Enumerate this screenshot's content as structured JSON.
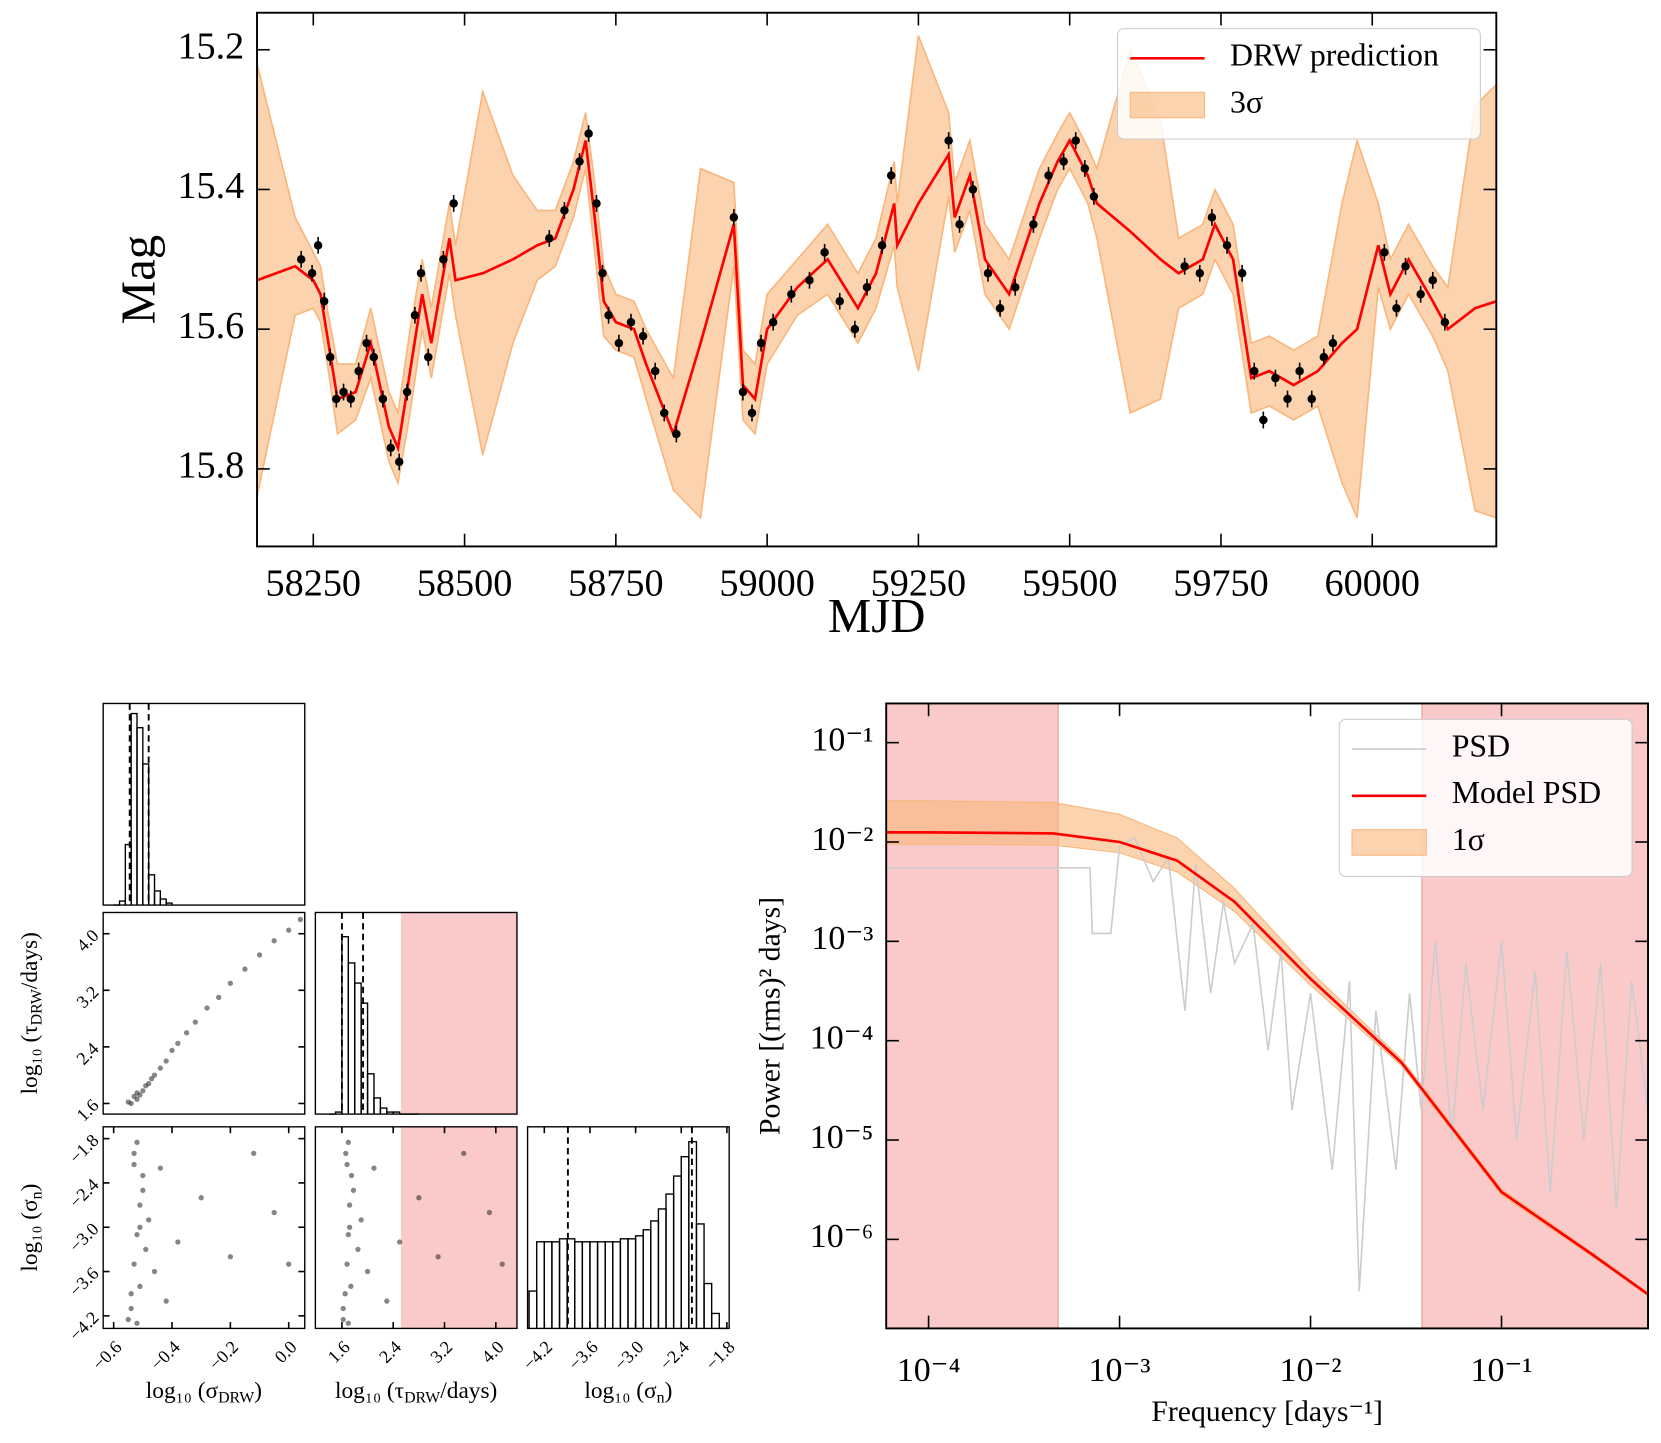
{
  "chart_data": [
    {
      "type": "line",
      "xlabel": "MJD",
      "ylabel": "Mag",
      "legend": "upper right",
      "xlim": [
        58157,
        60205
      ],
      "ylim": [
        15.147,
        15.911
      ],
      "y_inverted": true,
      "xticks": [
        58250,
        58500,
        58750,
        59000,
        59250,
        59500,
        59750,
        60000
      ],
      "yticks": [
        15.2,
        15.4,
        15.6,
        15.8
      ],
      "series": [
        {
          "name": "DRW prediction",
          "color": "#ff0000",
          "x": [
            58157,
            58220,
            58250,
            58262,
            58275,
            58290,
            58320,
            58345,
            58360,
            58375,
            58390,
            58410,
            58430,
            58445,
            58475,
            58485,
            58530,
            58580,
            58620,
            58650,
            58680,
            58700,
            58715,
            58730,
            58750,
            58780,
            58800,
            58845,
            58890,
            58945,
            58960,
            58980,
            59000,
            59050,
            59100,
            59150,
            59180,
            59210,
            59215,
            59250,
            59300,
            59310,
            59335,
            59360,
            59400,
            59450,
            59480,
            59500,
            59530,
            59545,
            59600,
            59650,
            59680,
            59720,
            59740,
            59770,
            59800,
            59830,
            59870,
            59910,
            59950,
            59975,
            60010,
            60030,
            60060,
            60100,
            60125,
            60170,
            60205
          ],
          "values": [
            15.53,
            15.51,
            15.53,
            15.55,
            15.62,
            15.7,
            15.69,
            15.62,
            15.68,
            15.74,
            15.77,
            15.66,
            15.55,
            15.62,
            15.47,
            15.53,
            15.52,
            15.5,
            15.48,
            15.47,
            15.4,
            15.33,
            15.44,
            15.56,
            15.59,
            15.6,
            15.65,
            15.75,
            15.62,
            15.45,
            15.68,
            15.7,
            15.6,
            15.54,
            15.5,
            15.57,
            15.52,
            15.42,
            15.48,
            15.42,
            15.35,
            15.44,
            15.38,
            15.5,
            15.55,
            15.42,
            15.36,
            15.33,
            15.38,
            15.42,
            15.46,
            15.5,
            15.52,
            15.5,
            15.45,
            15.5,
            15.67,
            15.66,
            15.68,
            15.66,
            15.62,
            15.6,
            15.48,
            15.55,
            15.5,
            15.56,
            15.6,
            15.57,
            15.56
          ]
        },
        {
          "name": "3σ",
          "color": "#f9b57a",
          "halfwidth": [
            0.31,
            0.07,
            0.04,
            0.04,
            0.04,
            0.05,
            0.04,
            0.05,
            0.05,
            0.05,
            0.05,
            0.06,
            0.05,
            0.05,
            0.05,
            0.05,
            0.26,
            0.12,
            0.05,
            0.04,
            0.04,
            0.04,
            0.05,
            0.05,
            0.04,
            0.04,
            0.05,
            0.08,
            0.25,
            0.06,
            0.05,
            0.05,
            0.05,
            0.04,
            0.05,
            0.05,
            0.05,
            0.06,
            0.06,
            0.24,
            0.06,
            0.05,
            0.05,
            0.05,
            0.05,
            0.05,
            0.04,
            0.04,
            0.04,
            0.05,
            0.26,
            0.2,
            0.05,
            0.05,
            0.05,
            0.05,
            0.05,
            0.05,
            0.05,
            0.05,
            0.2,
            0.27,
            0.06,
            0.05,
            0.05,
            0.05,
            0.06,
            0.29,
            0.31
          ]
        }
      ],
      "points": {
        "color": "#000000",
        "yerr": 0.012,
        "x": [
          58230,
          58248,
          58258,
          58268,
          58278,
          58288,
          58300,
          58312,
          58325,
          58338,
          58350,
          58365,
          58378,
          58392,
          58405,
          58418,
          58428,
          58440,
          58465,
          58482,
          58640,
          58665,
          58690,
          58705,
          58718,
          58728,
          58738,
          58755,
          58775,
          58795,
          58815,
          58830,
          58850,
          58945,
          58960,
          58975,
          58990,
          59010,
          59040,
          59070,
          59095,
          59120,
          59145,
          59165,
          59190,
          59205,
          59300,
          59318,
          59340,
          59365,
          59385,
          59410,
          59440,
          59465,
          59490,
          59510,
          59525,
          59540,
          59690,
          59715,
          59735,
          59760,
          59785,
          59805,
          59820,
          59840,
          59860,
          59880,
          59900,
          59920,
          59935,
          60020,
          60040,
          60055,
          60080,
          60100,
          60120
        ],
        "values": [
          15.5,
          15.52,
          15.48,
          15.56,
          15.64,
          15.7,
          15.69,
          15.7,
          15.66,
          15.62,
          15.64,
          15.7,
          15.77,
          15.79,
          15.69,
          15.58,
          15.52,
          15.64,
          15.5,
          15.42,
          15.47,
          15.43,
          15.36,
          15.32,
          15.42,
          15.52,
          15.58,
          15.62,
          15.59,
          15.61,
          15.66,
          15.72,
          15.75,
          15.44,
          15.69,
          15.72,
          15.62,
          15.59,
          15.55,
          15.53,
          15.49,
          15.56,
          15.6,
          15.54,
          15.48,
          15.38,
          15.33,
          15.45,
          15.4,
          15.52,
          15.57,
          15.54,
          15.45,
          15.38,
          15.36,
          15.33,
          15.37,
          15.41,
          15.51,
          15.52,
          15.44,
          15.48,
          15.52,
          15.66,
          15.73,
          15.67,
          15.7,
          15.66,
          15.7,
          15.64,
          15.62,
          15.49,
          15.57,
          15.51,
          15.55,
          15.53,
          15.59
        ]
      }
    },
    {
      "type": "histogram",
      "xlim": [
        -0.636,
        0.055
      ],
      "ylim": [
        0,
        100
      ],
      "bins": [
        -0.6,
        -0.58,
        -0.56,
        -0.54,
        -0.52,
        -0.5,
        -0.48,
        -0.46,
        -0.44,
        -0.42,
        -0.4
      ],
      "counts": [
        0,
        2,
        30,
        95,
        88,
        70,
        15,
        7,
        3,
        1
      ],
      "quantiles": [
        -0.545,
        -0.48
      ]
    },
    {
      "type": "scatter",
      "xlim": [
        -0.636,
        0.055
      ],
      "ylim": [
        1.45,
        4.3
      ],
      "yticks": [
        1.6,
        2.4,
        3.2,
        {
          "value": 4,
          "label": "4.0"
        }
      ],
      "ylabel": [
        "log₁₀ (τ",
        "DRW",
        "/days)"
      ],
      "x": [
        -0.55,
        -0.53,
        -0.52,
        -0.5,
        -0.49,
        -0.52,
        -0.47,
        -0.46,
        -0.44,
        -0.42,
        -0.4,
        -0.38,
        -0.35,
        -0.32,
        -0.28,
        -0.24,
        -0.2,
        -0.15,
        -0.1,
        -0.05,
        0.0,
        0.04,
        -0.54,
        -0.51,
        -0.48
      ],
      "values": [
        1.62,
        1.7,
        1.66,
        1.78,
        1.85,
        1.75,
        1.95,
        2.0,
        2.1,
        2.2,
        2.35,
        2.45,
        2.6,
        2.75,
        2.95,
        3.1,
        3.3,
        3.5,
        3.7,
        3.9,
        4.05,
        4.2,
        1.6,
        1.72,
        1.88
      ]
    },
    {
      "type": "histogram",
      "xlim": [
        1.186,
        4.33
      ],
      "ylim": [
        0,
        100
      ],
      "bins": [
        1.4,
        1.5,
        1.6,
        1.7,
        1.8,
        1.9,
        2.0,
        2.1,
        2.2,
        2.3,
        2.4,
        2.5,
        2.6,
        2.7,
        2.8
      ],
      "counts": [
        0,
        1,
        88,
        75,
        65,
        55,
        20,
        8,
        3,
        1,
        1,
        0,
        0,
        0
      ],
      "quantiles": [
        1.6,
        1.93
      ],
      "excluded": [
        2.52,
        4.33
      ]
    },
    {
      "type": "scatter",
      "xlim": [
        -0.636,
        0.055
      ],
      "ylim": [
        -4.37,
        -1.64
      ],
      "xticks": [
        {
          "value": -0.6,
          "label": "−0.6"
        },
        {
          "value": -0.4,
          "label": "−0.4"
        },
        {
          "value": -0.2,
          "label": "−0.2"
        },
        {
          "value": 0,
          "label": "0.0"
        }
      ],
      "yticks": [
        {
          "value": -4.2,
          "label": "−4.2"
        },
        {
          "value": -3.6,
          "label": "−3.6"
        },
        {
          "value": -3.0,
          "label": "−3.0"
        },
        {
          "value": -2.4,
          "label": "−2.4"
        },
        {
          "value": -1.8,
          "label": "−1.8"
        }
      ],
      "xlabel": [
        "log₁₀ (σ",
        "DRW",
        ")"
      ],
      "ylabel": [
        "log₁₀ (σ",
        "n",
        ")"
      ],
      "x": [
        -0.55,
        -0.54,
        -0.53,
        -0.52,
        -0.51,
        -0.5,
        -0.53,
        -0.52,
        -0.5,
        -0.49,
        -0.54,
        -0.51,
        -0.48,
        -0.46,
        -0.44,
        -0.42,
        -0.38,
        -0.3,
        -0.2,
        -0.12,
        -0.05,
        0.0,
        -0.53,
        -0.52,
        -0.51
      ],
      "values": [
        -4.25,
        -3.9,
        -3.5,
        -3.1,
        -2.7,
        -2.3,
        -2.0,
        -1.85,
        -2.5,
        -3.3,
        -4.1,
        -3.8,
        -2.9,
        -3.6,
        -2.2,
        -4.0,
        -3.2,
        -2.6,
        -3.4,
        -2.0,
        -2.8,
        -3.5,
        -2.15,
        -4.3,
        -3.0
      ]
    },
    {
      "type": "scatter",
      "xlim": [
        1.186,
        4.33
      ],
      "ylim": [
        -4.37,
        -1.64
      ],
      "xticks": [
        1.6,
        2.4,
        3.2,
        {
          "value": 4,
          "label": "4.0"
        }
      ],
      "xlabel": [
        "log₁₀ (τ",
        "DRW",
        "/days)"
      ],
      "excluded": [
        2.52,
        4.33
      ],
      "x": [
        1.62,
        1.65,
        1.68,
        1.7,
        1.72,
        1.75,
        1.66,
        1.7,
        1.78,
        1.85,
        1.62,
        1.74,
        1.9,
        2.0,
        2.1,
        2.3,
        2.5,
        2.8,
        3.1,
        3.5,
        3.9,
        4.1,
        1.68,
        1.7,
        1.72
      ],
      "values": [
        -4.25,
        -3.9,
        -3.5,
        -3.1,
        -2.7,
        -2.3,
        -2.0,
        -1.85,
        -2.5,
        -3.3,
        -4.1,
        -3.8,
        -2.9,
        -3.6,
        -2.2,
        -4.0,
        -3.2,
        -2.6,
        -3.4,
        -2.0,
        -2.8,
        -3.5,
        -2.15,
        -4.3,
        -3.0
      ]
    },
    {
      "type": "histogram",
      "xlim": [
        -4.42,
        -1.77
      ],
      "ylim": [
        0,
        135
      ],
      "xticks": [
        {
          "value": -4.2,
          "label": "−4.2"
        },
        {
          "value": -3.6,
          "label": "−3.6"
        },
        {
          "value": -3.0,
          "label": "−3.0"
        },
        {
          "value": -2.4,
          "label": "−2.4"
        },
        {
          "value": -1.8,
          "label": "−1.8"
        }
      ],
      "xlabel": [
        "log₁₀ (σ",
        "n",
        ")"
      ],
      "bins": [
        -4.4,
        -4.3,
        -4.2,
        -4.1,
        -4.0,
        -3.9,
        -3.8,
        -3.7,
        -3.6,
        -3.5,
        -3.4,
        -3.3,
        -3.2,
        -3.1,
        -3.0,
        -2.9,
        -2.8,
        -2.7,
        -2.6,
        -2.5,
        -2.4,
        -2.3,
        -2.2,
        -2.1,
        -2.0,
        -1.9,
        -1.8
      ],
      "counts": [
        25,
        58,
        58,
        58,
        60,
        60,
        58,
        58,
        58,
        58,
        58,
        58,
        60,
        60,
        62,
        66,
        72,
        80,
        90,
        102,
        115,
        125,
        70,
        30,
        10,
        0
      ],
      "quantiles": [
        -3.89,
        -2.26
      ]
    },
    {
      "type": "psd",
      "xlabel": "Frequency [days⁻¹]",
      "ylabel": "Power [(rms)² days]",
      "xlog": true,
      "ylog": true,
      "legend": "upper right",
      "xlim": [
        6e-05,
        0.585
      ],
      "ylim": [
        1.27e-07,
        0.248
      ],
      "xticks": [
        {
          "value": 0.0001,
          "label": "10⁻⁴"
        },
        {
          "value": 0.001,
          "label": "10⁻³"
        },
        {
          "value": 0.01,
          "label": "10⁻²"
        },
        {
          "value": 0.1,
          "label": "10⁻¹"
        }
      ],
      "yticks": [
        {
          "value": 0.1,
          "label": "10⁻¹"
        },
        {
          "value": 0.01,
          "label": "10⁻²"
        },
        {
          "value": 0.001,
          "label": "10⁻³"
        },
        {
          "value": 0.0001,
          "label": "10⁻⁴"
        },
        {
          "value": 1e-05,
          "label": "10⁻⁵"
        },
        {
          "value": 1e-06,
          "label": "10⁻⁶"
        }
      ],
      "excluded": [
        [
          6e-05,
          0.000477
        ],
        [
          0.0383,
          0.585
        ]
      ],
      "series": [
        {
          "name": "PSD",
          "color": "#cccccc",
          "x": [
            6e-05,
            0.0007,
            0.00072,
            0.0009,
            0.001,
            0.0012,
            0.0015,
            0.0018,
            0.0022,
            0.0025,
            0.003,
            0.0035,
            0.004,
            0.005,
            0.006,
            0.007,
            0.008,
            0.01,
            0.013,
            0.016,
            0.018,
            0.022,
            0.028,
            0.033,
            0.038,
            0.045,
            0.055,
            0.065,
            0.08,
            0.1,
            0.12,
            0.15,
            0.18,
            0.22,
            0.27,
            0.33,
            0.4,
            0.48,
            0.585
          ],
          "values": [
            0.0055,
            0.0055,
            0.0012,
            0.0012,
            0.009,
            0.011,
            0.004,
            0.007,
            0.0002,
            0.006,
            0.0003,
            0.0025,
            0.0006,
            0.0015,
            8e-05,
            0.0008,
            2e-05,
            0.0003,
            5e-06,
            0.0004,
            3e-07,
            0.0002,
            5e-06,
            0.0003,
            2e-05,
            0.001,
            1e-05,
            0.0006,
            2e-05,
            0.001,
            1e-05,
            0.0005,
            3e-06,
            0.0008,
            1e-05,
            0.0006,
            2e-06,
            0.0004,
            2e-05
          ]
        },
        {
          "name": "Model PSD",
          "color": "#ff0000",
          "x": [
            6e-05,
            0.0001,
            0.00045,
            0.001,
            0.002,
            0.004,
            0.01,
            0.03,
            0.1,
            0.3,
            0.585
          ],
          "values": [
            0.0125,
            0.0125,
            0.0122,
            0.01,
            0.0065,
            0.0025,
            0.00042,
            6e-05,
            3e-06,
            7e-07,
            2.8e-07
          ]
        },
        {
          "name": "1σ",
          "color": "#f9b57a",
          "upper": [
            0.026,
            0.026,
            0.025,
            0.019,
            0.011,
            0.0034,
            0.0005,
            6.5e-05,
            3.2e-06,
            7.3e-07,
            2.9e-07
          ],
          "lower": [
            0.0095,
            0.0095,
            0.0093,
            0.0078,
            0.005,
            0.002,
            0.00036,
            5.6e-05,
            2.8e-06,
            6.7e-07,
            2.7e-07
          ]
        }
      ]
    }
  ]
}
